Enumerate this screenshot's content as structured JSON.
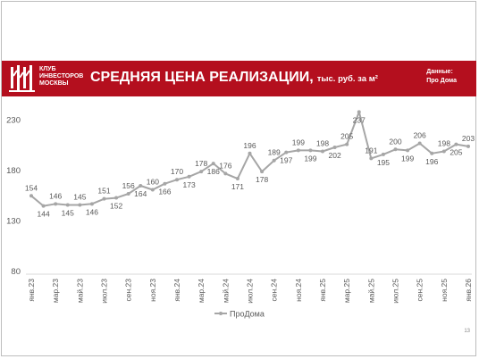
{
  "header": {
    "club_text": "КЛУБ\nИНВЕСТОРОВ\nМОСКВЫ",
    "title": "СРЕДНЯЯ ЦЕНА РЕАЛИЗАЦИИ,",
    "unit": "тыс. руб. за м²",
    "source_label": "Данные:",
    "source_value": "Про Дома",
    "brand_color": "#b40f1e"
  },
  "page_number": "13",
  "chart_data": {
    "type": "line",
    "title": "СРЕДНЯЯ ЦЕНА РЕАЛИЗАЦИИ, тыс. руб. за м²",
    "xlabel": "",
    "ylabel": "",
    "ylim": [
      80,
      240
    ],
    "yticks": [
      80,
      130,
      180,
      230
    ],
    "grid": false,
    "legend": "bottom-center",
    "x": [
      "янв.23",
      "фев.23",
      "мар.23",
      "апр.23",
      "май.23",
      "июн.23",
      "июл.23",
      "авг.23",
      "сен.23",
      "окт.23",
      "ноя.23",
      "дек.23",
      "янв.24",
      "фев.24",
      "мар.24",
      "апр.24",
      "май.24",
      "июн.24",
      "июл.24",
      "авг.24",
      "сен.24",
      "окт.24",
      "ноя.24",
      "дек.24",
      "янв.25",
      "фев.25",
      "мар.25",
      "апр.25",
      "май.25",
      "июн.25",
      "июл.25",
      "авг.25",
      "сен.25",
      "окт.25",
      "ноя.25",
      "дек.25",
      "янв.26"
    ],
    "xtick_labels": [
      "янв.23",
      "мар.23",
      "май.23",
      "июл.23",
      "сен.23",
      "ноя.23",
      "янв.24",
      "мар.24",
      "май.24",
      "июл.24",
      "сен.24",
      "ноя.24",
      "янв.25",
      "мар.25",
      "май.25",
      "июл.25",
      "сен.25",
      "ноя.25",
      "янв.26"
    ],
    "series": [
      {
        "name": "ПроДома",
        "color": "#a6a6a6",
        "values": [
          154,
          144,
          146,
          145,
          145,
          146,
          151,
          152,
          156,
          164,
          160,
          166,
          170,
          173,
          178,
          186,
          176,
          171,
          196,
          178,
          189,
          197,
          199,
          199,
          198,
          202,
          205,
          237,
          191,
          195,
          200,
          199,
          206,
          196,
          198,
          205,
          203
        ]
      }
    ]
  }
}
